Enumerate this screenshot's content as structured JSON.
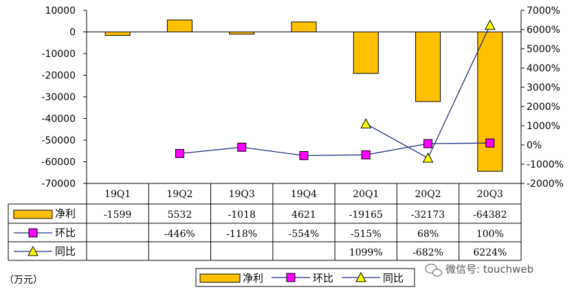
{
  "chart_data": {
    "type": "bar",
    "categories": [
      "19Q1",
      "19Q2",
      "19Q3",
      "19Q4",
      "20Q1",
      "20Q2",
      "20Q3"
    ],
    "series": [
      {
        "name": "净利",
        "kind": "bar",
        "axis": "left",
        "color": "#FFC000",
        "values": [
          -1599,
          5532,
          -1018,
          4621,
          -19165,
          -32173,
          -64382
        ],
        "labels": [
          "-1599",
          "5532",
          "-1018",
          "4621",
          "-19165",
          "-32173",
          "-64382"
        ]
      },
      {
        "name": "环比",
        "kind": "line",
        "axis": "right",
        "color": "#1F2F7F",
        "marker": "square",
        "marker_color": "#FF00FF",
        "values": [
          null,
          -446,
          -118,
          -554,
          -515,
          68,
          100
        ],
        "labels": [
          "",
          "-446%",
          "-118%",
          "-554%",
          "-515%",
          "68%",
          "100%"
        ]
      },
      {
        "name": "同比",
        "kind": "line",
        "axis": "right",
        "color": "#1F2F7F",
        "marker": "triangle",
        "marker_color": "#FFFF00",
        "values": [
          null,
          null,
          null,
          null,
          1099,
          -682,
          6224
        ],
        "labels": [
          "",
          "",
          "",
          "",
          "1099%",
          "-682%",
          "6224%"
        ]
      }
    ],
    "left_axis": {
      "min": -70000,
      "max": 10000,
      "step": 10000,
      "ticks": [
        "10000",
        "0",
        "-10000",
        "-20000",
        "-30000",
        "-40000",
        "-50000",
        "-60000",
        "-70000"
      ]
    },
    "right_axis": {
      "min": -2000,
      "max": 7000,
      "step": 1000,
      "ticks": [
        "7000%",
        "6000%",
        "5000%",
        "4000%",
        "3000%",
        "2000%",
        "1000%",
        "0%",
        "-1000%",
        "-2000%"
      ]
    },
    "legend_position": "bottom",
    "unit_label": "（万元）",
    "watermark": "微信号: touchweb",
    "grid": false
  }
}
